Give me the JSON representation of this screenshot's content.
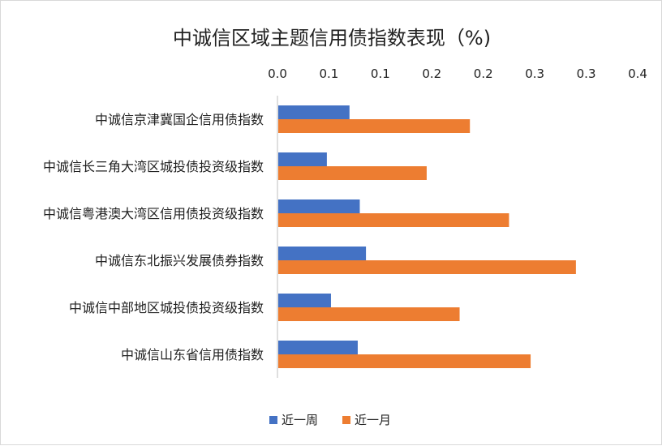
{
  "chart_data": {
    "type": "bar",
    "orientation": "horizontal",
    "title": "中诚信区域主题信用债指数表现（%)",
    "categories": [
      "中诚信京津冀国企信用债指数",
      "中诚信长三角大湾区城投债投资级指数",
      "中诚信粤港澳大湾区信用债投资级指数",
      "中诚信东北振兴发展债券指数",
      "中诚信中部地区城投债投资级指数",
      "中诚信山东省信用债指数"
    ],
    "series": [
      {
        "name": "近一周",
        "color": "#4472c4",
        "values": [
          0.07,
          0.048,
          0.08,
          0.086,
          0.052,
          0.078
        ]
      },
      {
        "name": "近一月",
        "color": "#ed7d31",
        "values": [
          0.187,
          0.145,
          0.225,
          0.29,
          0.177,
          0.246
        ]
      }
    ],
    "xlim": [
      0,
      0.35
    ],
    "x_ticks": [
      0.0,
      0.05,
      0.1,
      0.15,
      0.2,
      0.25,
      0.3,
      0.35
    ],
    "x_tick_labels": [
      "0.0",
      "0.1",
      "0.1",
      "0.2",
      "0.2",
      "0.3",
      "0.3",
      "0.4"
    ],
    "x_axis_position": "top",
    "grid": false,
    "legend_position": "bottom"
  }
}
